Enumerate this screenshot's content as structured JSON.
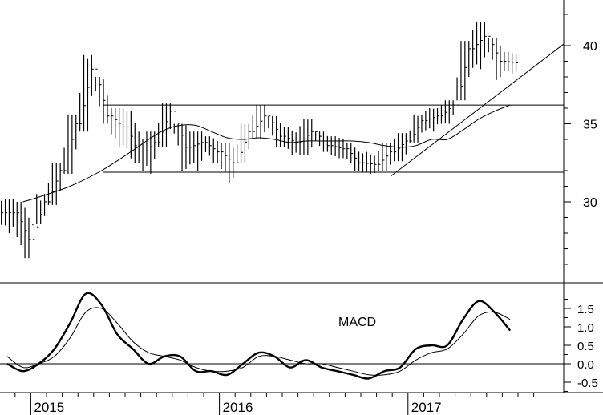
{
  "chart_data": [
    {
      "type": "ohlc",
      "xlabel": "",
      "ylabel": "",
      "x_ticks": [
        "2015",
        "2016",
        "2017"
      ],
      "y_ticks": [
        30,
        35,
        40
      ],
      "ylim": [
        24,
        42.5
      ],
      "grid": false,
      "price_bars": [
        {
          "t": "2014-11",
          "low": 28.0,
          "high": 30.2,
          "close": 29.3
        },
        {
          "t": "2014-12",
          "low": 26.4,
          "high": 30.0,
          "close": 27.6
        },
        {
          "t": "2015-01",
          "low": 28.6,
          "high": 30.5,
          "close": 30.0
        },
        {
          "t": "2015-02",
          "low": 29.8,
          "high": 32.5,
          "close": 32.0
        },
        {
          "t": "2015-03",
          "low": 31.8,
          "high": 35.6,
          "close": 35.0
        },
        {
          "t": "2015-04",
          "low": 34.5,
          "high": 39.4,
          "close": 38.5
        },
        {
          "t": "2015-05",
          "low": 35.0,
          "high": 38.0,
          "close": 35.5
        },
        {
          "t": "2015-06",
          "low": 33.5,
          "high": 36.0,
          "close": 34.8
        },
        {
          "t": "2015-07",
          "low": 32.5,
          "high": 35.8,
          "close": 33.0
        },
        {
          "t": "2015-08",
          "low": 31.8,
          "high": 34.5,
          "close": 33.8
        },
        {
          "t": "2015-09",
          "low": 33.5,
          "high": 36.3,
          "close": 35.8
        },
        {
          "t": "2015-10",
          "low": 32.0,
          "high": 35.0,
          "close": 33.5
        },
        {
          "t": "2015-11",
          "low": 32.0,
          "high": 34.5,
          "close": 33.8
        },
        {
          "t": "2015-12",
          "low": 32.5,
          "high": 34.2,
          "close": 33.2
        },
        {
          "t": "2016-01",
          "low": 31.2,
          "high": 33.8,
          "close": 32.5
        },
        {
          "t": "2016-02",
          "low": 32.5,
          "high": 35.0,
          "close": 34.5
        },
        {
          "t": "2016-03",
          "low": 34.0,
          "high": 36.2,
          "close": 35.5
        },
        {
          "t": "2016-04",
          "low": 33.5,
          "high": 35.5,
          "close": 34.2
        },
        {
          "t": "2016-05",
          "low": 33.0,
          "high": 34.8,
          "close": 33.8
        },
        {
          "t": "2016-06",
          "low": 33.0,
          "high": 35.3,
          "close": 34.5
        },
        {
          "t": "2016-07",
          "low": 33.2,
          "high": 34.5,
          "close": 33.6
        },
        {
          "t": "2016-08",
          "low": 32.8,
          "high": 34.2,
          "close": 33.4
        },
        {
          "t": "2016-09",
          "low": 32.0,
          "high": 33.8,
          "close": 32.5
        },
        {
          "t": "2016-10",
          "low": 31.8,
          "high": 33.2,
          "close": 32.4
        },
        {
          "t": "2016-11",
          "low": 32.0,
          "high": 33.8,
          "close": 33.2
        },
        {
          "t": "2016-12",
          "low": 32.6,
          "high": 34.4,
          "close": 33.9
        },
        {
          "t": "2017-01",
          "low": 33.8,
          "high": 35.6,
          "close": 35.2
        },
        {
          "t": "2017-02",
          "low": 34.5,
          "high": 36.0,
          "close": 35.5
        },
        {
          "t": "2017-03",
          "low": 35.0,
          "high": 36.5,
          "close": 36.2
        },
        {
          "t": "2017-04",
          "low": 36.5,
          "high": 40.3,
          "close": 39.8
        },
        {
          "t": "2017-05",
          "low": 38.5,
          "high": 41.5,
          "close": 40.6
        },
        {
          "t": "2017-06",
          "low": 37.8,
          "high": 40.5,
          "close": 39.0
        },
        {
          "t": "2017-07",
          "low": 38.2,
          "high": 39.6,
          "close": 38.9
        }
      ],
      "moving_average": [
        {
          "t": "2014-12",
          "v": 30.0
        },
        {
          "t": "2015-01",
          "v": 30.3
        },
        {
          "t": "2015-03",
          "v": 31.0
        },
        {
          "t": "2015-05",
          "v": 32.0
        },
        {
          "t": "2015-07",
          "v": 33.3
        },
        {
          "t": "2015-08",
          "v": 34.0
        },
        {
          "t": "2015-09",
          "v": 34.6
        },
        {
          "t": "2015-10",
          "v": 34.9
        },
        {
          "t": "2015-11",
          "v": 34.9
        },
        {
          "t": "2015-12",
          "v": 34.5
        },
        {
          "t": "2016-01",
          "v": 34.1
        },
        {
          "t": "2016-02",
          "v": 34.0
        },
        {
          "t": "2016-03",
          "v": 34.1
        },
        {
          "t": "2016-04",
          "v": 34.0
        },
        {
          "t": "2016-05",
          "v": 33.8
        },
        {
          "t": "2016-06",
          "v": 33.9
        },
        {
          "t": "2016-07",
          "v": 33.9
        },
        {
          "t": "2016-08",
          "v": 33.9
        },
        {
          "t": "2016-09",
          "v": 33.9
        },
        {
          "t": "2016-10",
          "v": 33.8
        },
        {
          "t": "2016-11",
          "v": 33.6
        },
        {
          "t": "2016-12",
          "v": 33.5
        },
        {
          "t": "2017-01",
          "v": 33.6
        },
        {
          "t": "2017-02",
          "v": 34.0
        },
        {
          "t": "2017-03",
          "v": 34.0
        },
        {
          "t": "2017-04",
          "v": 34.6
        },
        {
          "t": "2017-05",
          "v": 35.3
        },
        {
          "t": "2017-06",
          "v": 35.8
        },
        {
          "t": "2017-07",
          "v": 36.2
        }
      ],
      "horizontal_levels": [
        {
          "value": 36.2,
          "from": "2015-05",
          "to": "2017-08"
        },
        {
          "value": 31.9,
          "from": "2015-05",
          "to": "2017-08"
        }
      ],
      "trendline": {
        "from": {
          "t": "2016-11",
          "v": 31.8
        },
        "to": {
          "t": "2017-08",
          "v": 40.1
        }
      }
    },
    {
      "type": "line",
      "title": "MACD",
      "xlabel": "",
      "ylabel": "",
      "y_ticks": [
        -0.5,
        0.0,
        0.5,
        1.0,
        1.5
      ],
      "ylim": [
        -0.75,
        1.95
      ],
      "zero_line": true,
      "grid": false,
      "series": [
        {
          "style": "thick",
          "points": [
            {
              "t": "2014-11",
              "v": 0.0
            },
            {
              "t": "2014-12",
              "v": -0.2
            },
            {
              "t": "2015-01",
              "v": 0.0
            },
            {
              "t": "2015-02",
              "v": 0.4
            },
            {
              "t": "2015-03",
              "v": 1.1
            },
            {
              "t": "2015-04",
              "v": 1.9
            },
            {
              "t": "2015-05",
              "v": 1.6
            },
            {
              "t": "2015-06",
              "v": 0.8
            },
            {
              "t": "2015-07",
              "v": 0.4
            },
            {
              "t": "2015-08",
              "v": 0.0
            },
            {
              "t": "2015-09",
              "v": 0.2
            },
            {
              "t": "2015-10",
              "v": 0.2
            },
            {
              "t": "2015-11",
              "v": -0.2
            },
            {
              "t": "2015-12",
              "v": -0.2
            },
            {
              "t": "2016-01",
              "v": -0.3
            },
            {
              "t": "2016-02",
              "v": 0.0
            },
            {
              "t": "2016-03",
              "v": 0.3
            },
            {
              "t": "2016-04",
              "v": 0.2
            },
            {
              "t": "2016-05",
              "v": -0.1
            },
            {
              "t": "2016-06",
              "v": 0.1
            },
            {
              "t": "2016-07",
              "v": -0.1
            },
            {
              "t": "2016-08",
              "v": -0.2
            },
            {
              "t": "2016-09",
              "v": -0.3
            },
            {
              "t": "2016-10",
              "v": -0.4
            },
            {
              "t": "2016-11",
              "v": -0.2
            },
            {
              "t": "2016-12",
              "v": -0.1
            },
            {
              "t": "2017-01",
              "v": 0.4
            },
            {
              "t": "2017-02",
              "v": 0.5
            },
            {
              "t": "2017-03",
              "v": 0.5
            },
            {
              "t": "2017-04",
              "v": 1.2
            },
            {
              "t": "2017-05",
              "v": 1.7
            },
            {
              "t": "2017-06",
              "v": 1.4
            },
            {
              "t": "2017-07",
              "v": 0.9
            }
          ]
        },
        {
          "style": "thin",
          "points": [
            {
              "t": "2014-11",
              "v": 0.2
            },
            {
              "t": "2014-12",
              "v": -0.1
            },
            {
              "t": "2015-01",
              "v": 0.0
            },
            {
              "t": "2015-02",
              "v": 0.2
            },
            {
              "t": "2015-03",
              "v": 0.7
            },
            {
              "t": "2015-04",
              "v": 1.4
            },
            {
              "t": "2015-05",
              "v": 1.5
            },
            {
              "t": "2015-06",
              "v": 1.1
            },
            {
              "t": "2015-07",
              "v": 0.6
            },
            {
              "t": "2015-08",
              "v": 0.3
            },
            {
              "t": "2015-09",
              "v": 0.2
            },
            {
              "t": "2015-10",
              "v": 0.1
            },
            {
              "t": "2015-11",
              "v": -0.1
            },
            {
              "t": "2015-12",
              "v": -0.2
            },
            {
              "t": "2016-01",
              "v": -0.2
            },
            {
              "t": "2016-02",
              "v": -0.1
            },
            {
              "t": "2016-03",
              "v": 0.2
            },
            {
              "t": "2016-04",
              "v": 0.2
            },
            {
              "t": "2016-05",
              "v": 0.1
            },
            {
              "t": "2016-06",
              "v": 0.0
            },
            {
              "t": "2016-07",
              "v": 0.0
            },
            {
              "t": "2016-08",
              "v": -0.1
            },
            {
              "t": "2016-09",
              "v": -0.2
            },
            {
              "t": "2016-10",
              "v": -0.3
            },
            {
              "t": "2016-11",
              "v": -0.3
            },
            {
              "t": "2016-12",
              "v": -0.2
            },
            {
              "t": "2017-01",
              "v": 0.1
            },
            {
              "t": "2017-02",
              "v": 0.3
            },
            {
              "t": "2017-03",
              "v": 0.4
            },
            {
              "t": "2017-04",
              "v": 0.8
            },
            {
              "t": "2017-05",
              "v": 1.3
            },
            {
              "t": "2017-06",
              "v": 1.4
            },
            {
              "t": "2017-07",
              "v": 1.2
            }
          ]
        }
      ]
    }
  ]
}
